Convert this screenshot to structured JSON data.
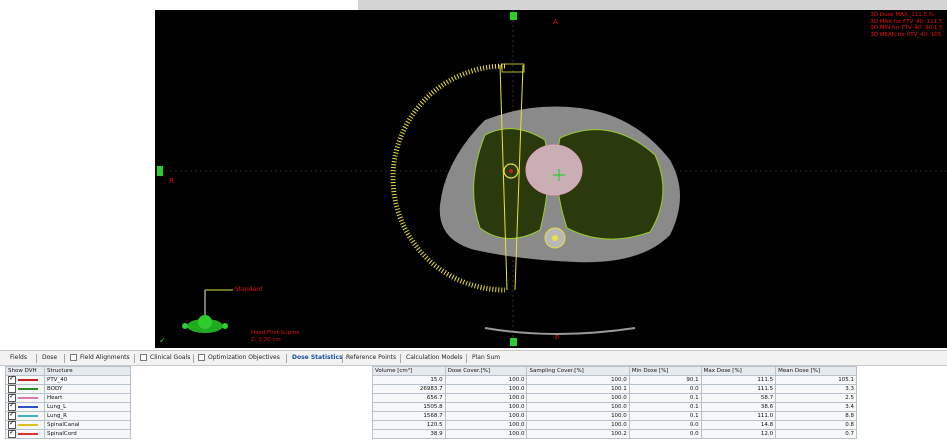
{
  "viewer": {
    "stats": [
      "3D Dose MAX: 111.5 %",
      "3D MAX for FTV_40: 111.5",
      "3D MIN for PTV_40: 90.1 5",
      "3D MEAN for PTV_40: 105."
    ],
    "labels": {
      "anterior": "A",
      "right": "R",
      "posterior": "P",
      "field": "Standard"
    },
    "orientation": [
      "Head First-Supine",
      "Z: 0.30 cm"
    ],
    "colors": {
      "accent_yellow": "#e8e23a",
      "ptv_green": "#9acd32",
      "body_fill": "#2b3a0d"
    }
  },
  "tabs": [
    {
      "label": "Fields",
      "checkbox": false,
      "active": false
    },
    {
      "label": "Dose",
      "checkbox": false,
      "active": false
    },
    {
      "label": "Field Alignments",
      "checkbox": true,
      "active": false
    },
    {
      "label": "Clinical Goals",
      "checkbox": true,
      "active": false
    },
    {
      "label": "Optimization Objectives",
      "checkbox": true,
      "active": false
    },
    {
      "label": "Dose Statistics",
      "checkbox": false,
      "active": true
    },
    {
      "label": "Reference Points",
      "checkbox": false,
      "active": false
    },
    {
      "label": "Calculation Models",
      "checkbox": false,
      "active": false
    },
    {
      "label": "Plan Sum",
      "checkbox": false,
      "active": false
    }
  ],
  "structures_table": {
    "headers": [
      "Show DVH",
      "Structure"
    ],
    "rows": [
      {
        "checked": true,
        "color": "#c81e1e",
        "name": "PTV_40"
      },
      {
        "checked": false,
        "color": "#2e8b2e",
        "name": "BODY"
      },
      {
        "checked": true,
        "color": "#d67ab0",
        "name": "Heart"
      },
      {
        "checked": true,
        "color": "#3050c8",
        "name": "Lung_L"
      },
      {
        "checked": true,
        "color": "#3cb0c8",
        "name": "Lung_R"
      },
      {
        "checked": true,
        "color": "#d8c020",
        "name": "SpinalCanal"
      },
      {
        "checked": true,
        "color": "#e03030",
        "name": "SpinalCord"
      }
    ]
  },
  "stats_table": {
    "headers": [
      "Volume [cm³]",
      "Dose Cover.[%]",
      "Sampling Cover.[%]",
      "Min Dose [%]",
      "Max Dose [%]",
      "Mean Dose [%]"
    ],
    "rows": [
      [
        "15.0",
        "100.0",
        "100.0",
        "90.1",
        "111.5",
        "105.1"
      ],
      [
        "26983.7",
        "100.0",
        "100.1",
        "0.0",
        "111.5",
        "3.3"
      ],
      [
        "656.7",
        "100.0",
        "100.0",
        "0.1",
        "58.7",
        "2.5"
      ],
      [
        "1505.8",
        "100.0",
        "100.0",
        "0.1",
        "38.6",
        "3.4"
      ],
      [
        "1568.7",
        "100.0",
        "100.0",
        "0.1",
        "111.0",
        "8.8"
      ],
      [
        "120.5",
        "100.0",
        "100.0",
        "0.0",
        "14.8",
        "0.8"
      ],
      [
        "38.9",
        "100.0",
        "100.2",
        "0.0",
        "12.0",
        "0.7"
      ]
    ]
  }
}
